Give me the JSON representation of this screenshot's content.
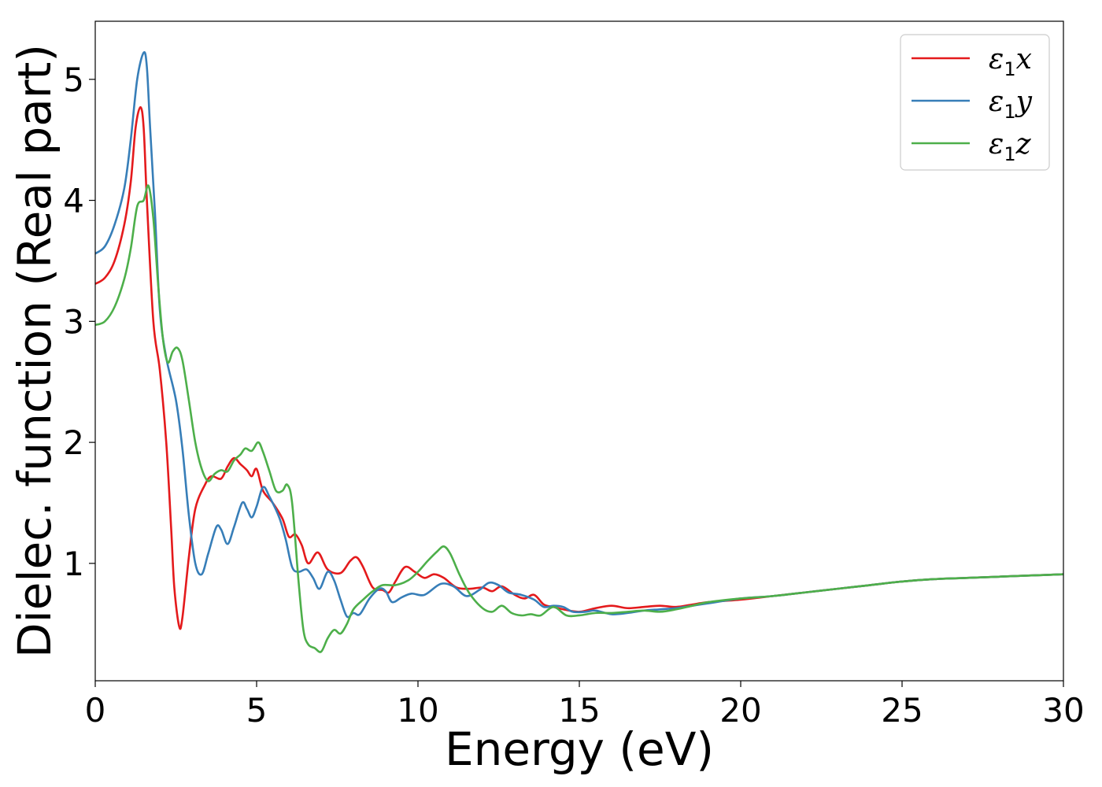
{
  "chart_data": {
    "type": "line",
    "title": "",
    "xlabel": "Energy (eV)",
    "ylabel": "Dielec. function (Real part)",
    "xlim": [
      0,
      30
    ],
    "ylim": [
      0.03,
      5.48
    ],
    "xticks": [
      0,
      5,
      10,
      15,
      20,
      25,
      30
    ],
    "xtick_labels": [
      "0",
      "5",
      "10",
      "15",
      "20",
      "25",
      "30"
    ],
    "yticks": [
      1,
      2,
      3,
      4,
      5
    ],
    "ytick_labels": [
      "1",
      "2",
      "3",
      "4",
      "5"
    ],
    "grid": false,
    "legend_position": "top-right",
    "series": [
      {
        "name": "ε1x",
        "legend_main": "ε",
        "legend_sub": "1",
        "legend_var": "x",
        "color": "#e41a1c",
        "points": [
          [
            0,
            3.31
          ],
          [
            0.3,
            3.36
          ],
          [
            0.6,
            3.5
          ],
          [
            0.9,
            3.8
          ],
          [
            1.1,
            4.15
          ],
          [
            1.25,
            4.6
          ],
          [
            1.4,
            4.77
          ],
          [
            1.5,
            4.6
          ],
          [
            1.6,
            4.0
          ],
          [
            1.8,
            3.0
          ],
          [
            2.0,
            2.6
          ],
          [
            2.2,
            2.0
          ],
          [
            2.35,
            1.3
          ],
          [
            2.45,
            0.8
          ],
          [
            2.6,
            0.48
          ],
          [
            2.7,
            0.55
          ],
          [
            2.9,
            1.05
          ],
          [
            3.1,
            1.45
          ],
          [
            3.4,
            1.65
          ],
          [
            3.6,
            1.72
          ],
          [
            3.9,
            1.7
          ],
          [
            4.1,
            1.8
          ],
          [
            4.3,
            1.87
          ],
          [
            4.5,
            1.82
          ],
          [
            4.7,
            1.77
          ],
          [
            4.85,
            1.72
          ],
          [
            5.0,
            1.78
          ],
          [
            5.2,
            1.6
          ],
          [
            5.5,
            1.5
          ],
          [
            5.8,
            1.37
          ],
          [
            6.0,
            1.22
          ],
          [
            6.2,
            1.24
          ],
          [
            6.4,
            1.15
          ],
          [
            6.6,
            1.0
          ],
          [
            6.9,
            1.09
          ],
          [
            7.2,
            0.95
          ],
          [
            7.6,
            0.92
          ],
          [
            7.9,
            1.02
          ],
          [
            8.1,
            1.05
          ],
          [
            8.3,
            0.97
          ],
          [
            8.6,
            0.8
          ],
          [
            8.9,
            0.78
          ],
          [
            9.1,
            0.76
          ],
          [
            9.3,
            0.85
          ],
          [
            9.6,
            0.97
          ],
          [
            9.9,
            0.93
          ],
          [
            10.2,
            0.88
          ],
          [
            10.5,
            0.91
          ],
          [
            10.8,
            0.88
          ],
          [
            11.2,
            0.8
          ],
          [
            11.6,
            0.79
          ],
          [
            12.0,
            0.8
          ],
          [
            12.3,
            0.77
          ],
          [
            12.6,
            0.81
          ],
          [
            13.0,
            0.74
          ],
          [
            13.3,
            0.71
          ],
          [
            13.6,
            0.74
          ],
          [
            13.9,
            0.66
          ],
          [
            14.2,
            0.64
          ],
          [
            14.5,
            0.62
          ],
          [
            15.0,
            0.6
          ],
          [
            15.5,
            0.63
          ],
          [
            16.0,
            0.65
          ],
          [
            16.5,
            0.63
          ],
          [
            17.0,
            0.64
          ],
          [
            17.5,
            0.65
          ],
          [
            18.0,
            0.64
          ],
          [
            18.5,
            0.66
          ],
          [
            19.0,
            0.68
          ],
          [
            20.0,
            0.7
          ],
          [
            21.0,
            0.73
          ],
          [
            22.0,
            0.76
          ],
          [
            23.0,
            0.79
          ],
          [
            24.0,
            0.82
          ],
          [
            25.0,
            0.85
          ],
          [
            26.0,
            0.87
          ],
          [
            27.0,
            0.88
          ],
          [
            28.0,
            0.89
          ],
          [
            29.0,
            0.9
          ],
          [
            30.0,
            0.91
          ]
        ]
      },
      {
        "name": "ε1y",
        "legend_main": "ε",
        "legend_sub": "1",
        "legend_var": "y",
        "color": "#377eb8",
        "points": [
          [
            0,
            3.56
          ],
          [
            0.3,
            3.62
          ],
          [
            0.6,
            3.8
          ],
          [
            0.9,
            4.1
          ],
          [
            1.1,
            4.5
          ],
          [
            1.3,
            5.0
          ],
          [
            1.5,
            5.22
          ],
          [
            1.6,
            5.1
          ],
          [
            1.7,
            4.6
          ],
          [
            1.85,
            3.9
          ],
          [
            2.0,
            3.1
          ],
          [
            2.2,
            2.7
          ],
          [
            2.5,
            2.35
          ],
          [
            2.7,
            1.95
          ],
          [
            2.9,
            1.4
          ],
          [
            3.1,
            1.0
          ],
          [
            3.3,
            0.91
          ],
          [
            3.5,
            1.08
          ],
          [
            3.75,
            1.3
          ],
          [
            3.9,
            1.28
          ],
          [
            4.1,
            1.16
          ],
          [
            4.3,
            1.3
          ],
          [
            4.55,
            1.5
          ],
          [
            4.7,
            1.45
          ],
          [
            4.85,
            1.38
          ],
          [
            5.0,
            1.47
          ],
          [
            5.2,
            1.63
          ],
          [
            5.4,
            1.55
          ],
          [
            5.7,
            1.38
          ],
          [
            5.9,
            1.2
          ],
          [
            6.1,
            0.97
          ],
          [
            6.3,
            0.93
          ],
          [
            6.55,
            0.95
          ],
          [
            6.75,
            0.88
          ],
          [
            6.95,
            0.79
          ],
          [
            7.2,
            0.93
          ],
          [
            7.4,
            0.86
          ],
          [
            7.6,
            0.7
          ],
          [
            7.8,
            0.56
          ],
          [
            8.0,
            0.59
          ],
          [
            8.2,
            0.58
          ],
          [
            8.5,
            0.71
          ],
          [
            8.8,
            0.79
          ],
          [
            9.0,
            0.77
          ],
          [
            9.2,
            0.68
          ],
          [
            9.5,
            0.72
          ],
          [
            9.8,
            0.75
          ],
          [
            10.2,
            0.74
          ],
          [
            10.7,
            0.83
          ],
          [
            11.1,
            0.81
          ],
          [
            11.5,
            0.73
          ],
          [
            11.9,
            0.78
          ],
          [
            12.2,
            0.84
          ],
          [
            12.5,
            0.82
          ],
          [
            12.8,
            0.76
          ],
          [
            13.2,
            0.74
          ],
          [
            13.6,
            0.7
          ],
          [
            13.9,
            0.64
          ],
          [
            14.2,
            0.65
          ],
          [
            14.5,
            0.64
          ],
          [
            14.8,
            0.6
          ],
          [
            15.2,
            0.6
          ],
          [
            15.5,
            0.61
          ],
          [
            16.0,
            0.58
          ],
          [
            16.5,
            0.59
          ],
          [
            17.0,
            0.61
          ],
          [
            17.5,
            0.62
          ],
          [
            18.0,
            0.63
          ],
          [
            18.5,
            0.65
          ],
          [
            19.0,
            0.67
          ],
          [
            20.0,
            0.71
          ],
          [
            21.0,
            0.73
          ],
          [
            22.0,
            0.76
          ],
          [
            23.0,
            0.79
          ],
          [
            24.0,
            0.82
          ],
          [
            25.0,
            0.85
          ],
          [
            26.0,
            0.87
          ],
          [
            27.0,
            0.88
          ],
          [
            28.0,
            0.89
          ],
          [
            29.0,
            0.9
          ],
          [
            30.0,
            0.91
          ]
        ]
      },
      {
        "name": "ε1z",
        "legend_main": "ε",
        "legend_sub": "1",
        "legend_var": "z",
        "color": "#4daf4a",
        "points": [
          [
            0,
            2.97
          ],
          [
            0.3,
            3.0
          ],
          [
            0.6,
            3.12
          ],
          [
            0.9,
            3.35
          ],
          [
            1.1,
            3.6
          ],
          [
            1.3,
            3.95
          ],
          [
            1.5,
            4.0
          ],
          [
            1.65,
            4.12
          ],
          [
            1.8,
            3.85
          ],
          [
            1.95,
            3.3
          ],
          [
            2.1,
            2.85
          ],
          [
            2.25,
            2.66
          ],
          [
            2.4,
            2.75
          ],
          [
            2.55,
            2.78
          ],
          [
            2.7,
            2.68
          ],
          [
            2.9,
            2.35
          ],
          [
            3.1,
            2.0
          ],
          [
            3.3,
            1.78
          ],
          [
            3.5,
            1.68
          ],
          [
            3.7,
            1.74
          ],
          [
            3.9,
            1.77
          ],
          [
            4.1,
            1.76
          ],
          [
            4.3,
            1.85
          ],
          [
            4.5,
            1.9
          ],
          [
            4.65,
            1.95
          ],
          [
            4.85,
            1.93
          ],
          [
            5.05,
            2.0
          ],
          [
            5.2,
            1.92
          ],
          [
            5.4,
            1.76
          ],
          [
            5.6,
            1.6
          ],
          [
            5.8,
            1.6
          ],
          [
            5.95,
            1.65
          ],
          [
            6.1,
            1.5
          ],
          [
            6.3,
            0.85
          ],
          [
            6.45,
            0.45
          ],
          [
            6.6,
            0.33
          ],
          [
            6.8,
            0.3
          ],
          [
            7.0,
            0.27
          ],
          [
            7.2,
            0.38
          ],
          [
            7.4,
            0.45
          ],
          [
            7.6,
            0.42
          ],
          [
            7.8,
            0.5
          ],
          [
            8.0,
            0.62
          ],
          [
            8.3,
            0.7
          ],
          [
            8.6,
            0.77
          ],
          [
            8.9,
            0.82
          ],
          [
            9.3,
            0.82
          ],
          [
            9.7,
            0.86
          ],
          [
            10.0,
            0.93
          ],
          [
            10.3,
            1.02
          ],
          [
            10.6,
            1.1
          ],
          [
            10.8,
            1.14
          ],
          [
            11.0,
            1.08
          ],
          [
            11.3,
            0.9
          ],
          [
            11.6,
            0.75
          ],
          [
            12.0,
            0.63
          ],
          [
            12.3,
            0.6
          ],
          [
            12.6,
            0.65
          ],
          [
            12.9,
            0.59
          ],
          [
            13.2,
            0.57
          ],
          [
            13.5,
            0.58
          ],
          [
            13.8,
            0.57
          ],
          [
            14.2,
            0.64
          ],
          [
            14.6,
            0.57
          ],
          [
            15.0,
            0.57
          ],
          [
            15.5,
            0.59
          ],
          [
            16.0,
            0.59
          ],
          [
            16.5,
            0.6
          ],
          [
            17.0,
            0.61
          ],
          [
            17.5,
            0.6
          ],
          [
            18.0,
            0.62
          ],
          [
            18.5,
            0.65
          ],
          [
            19.0,
            0.68
          ],
          [
            20.0,
            0.71
          ],
          [
            21.0,
            0.73
          ],
          [
            22.0,
            0.76
          ],
          [
            23.0,
            0.79
          ],
          [
            24.0,
            0.82
          ],
          [
            25.0,
            0.85
          ],
          [
            26.0,
            0.87
          ],
          [
            27.0,
            0.88
          ],
          [
            28.0,
            0.89
          ],
          [
            29.0,
            0.9
          ],
          [
            30.0,
            0.91
          ]
        ]
      }
    ]
  }
}
